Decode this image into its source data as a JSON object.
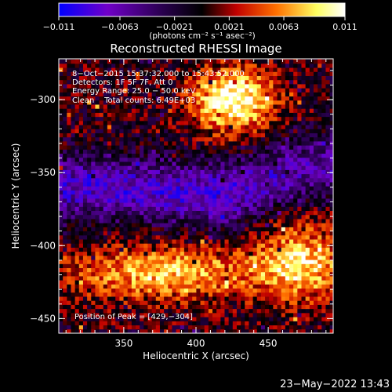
{
  "chart_data": {
    "type": "heatmap",
    "title": "Reconstructed RHESSI Image",
    "xlabel": "Heliocentric X (arcsec)",
    "ylabel": "Heliocentric Y (arcsec)",
    "xlim": [
      305,
      495
    ],
    "ylim": [
      -460,
      -272
    ],
    "x_ticks": [
      350,
      400,
      450
    ],
    "y_ticks": [
      -300,
      -350,
      -400,
      -450
    ],
    "x_tick_labels": [
      "350",
      "400",
      "450"
    ],
    "y_tick_labels": [
      "−300",
      "−350",
      "−400",
      "−450"
    ],
    "colorbar": {
      "min": -0.011,
      "max": 0.011,
      "ticks": [
        -0.011,
        -0.0063,
        -0.0021,
        0.0021,
        0.0063,
        0.011
      ],
      "tick_labels": [
        "−0.011",
        "−0.0063",
        "−0.0021",
        "0.0021",
        "0.0063",
        "0.011"
      ],
      "unit_label": "(photons cm⁻² s⁻¹ asec⁻²)",
      "colors": [
        "#0000ff",
        "#7000c8",
        "#2a0050",
        "#000000",
        "#c00000",
        "#ff7000",
        "#ffff60",
        "#ffffff"
      ]
    },
    "sources": [
      {
        "x": 425,
        "y": -300,
        "peak": 0.011,
        "sx": 28,
        "sy": 22
      },
      {
        "x": 378,
        "y": -418,
        "peak": 0.008,
        "sx": 65,
        "sy": 18
      },
      {
        "x": 472,
        "y": -412,
        "peak": 0.0085,
        "sx": 30,
        "sy": 25
      }
    ],
    "negative_band": [
      {
        "x": 330,
        "y": -360,
        "value": -0.0075
      },
      {
        "x": 420,
        "y": -365,
        "value": -0.008
      },
      {
        "x": 480,
        "y": -345,
        "value": -0.006
      }
    ],
    "grid": false
  },
  "annotations": {
    "time": "8−Oct−2015 15:37:32.000 to 15:43:52.000",
    "detectors": "Detectors: 1F 5F 7F, Att 0",
    "energy": "Energy Range: 25.0 − 50.0 keV",
    "clean": "Clean    Total counts: 6.49E+03",
    "peak": "Position of Peak = [429,−304]"
  },
  "footer_date": "23−May−2022 13:43"
}
